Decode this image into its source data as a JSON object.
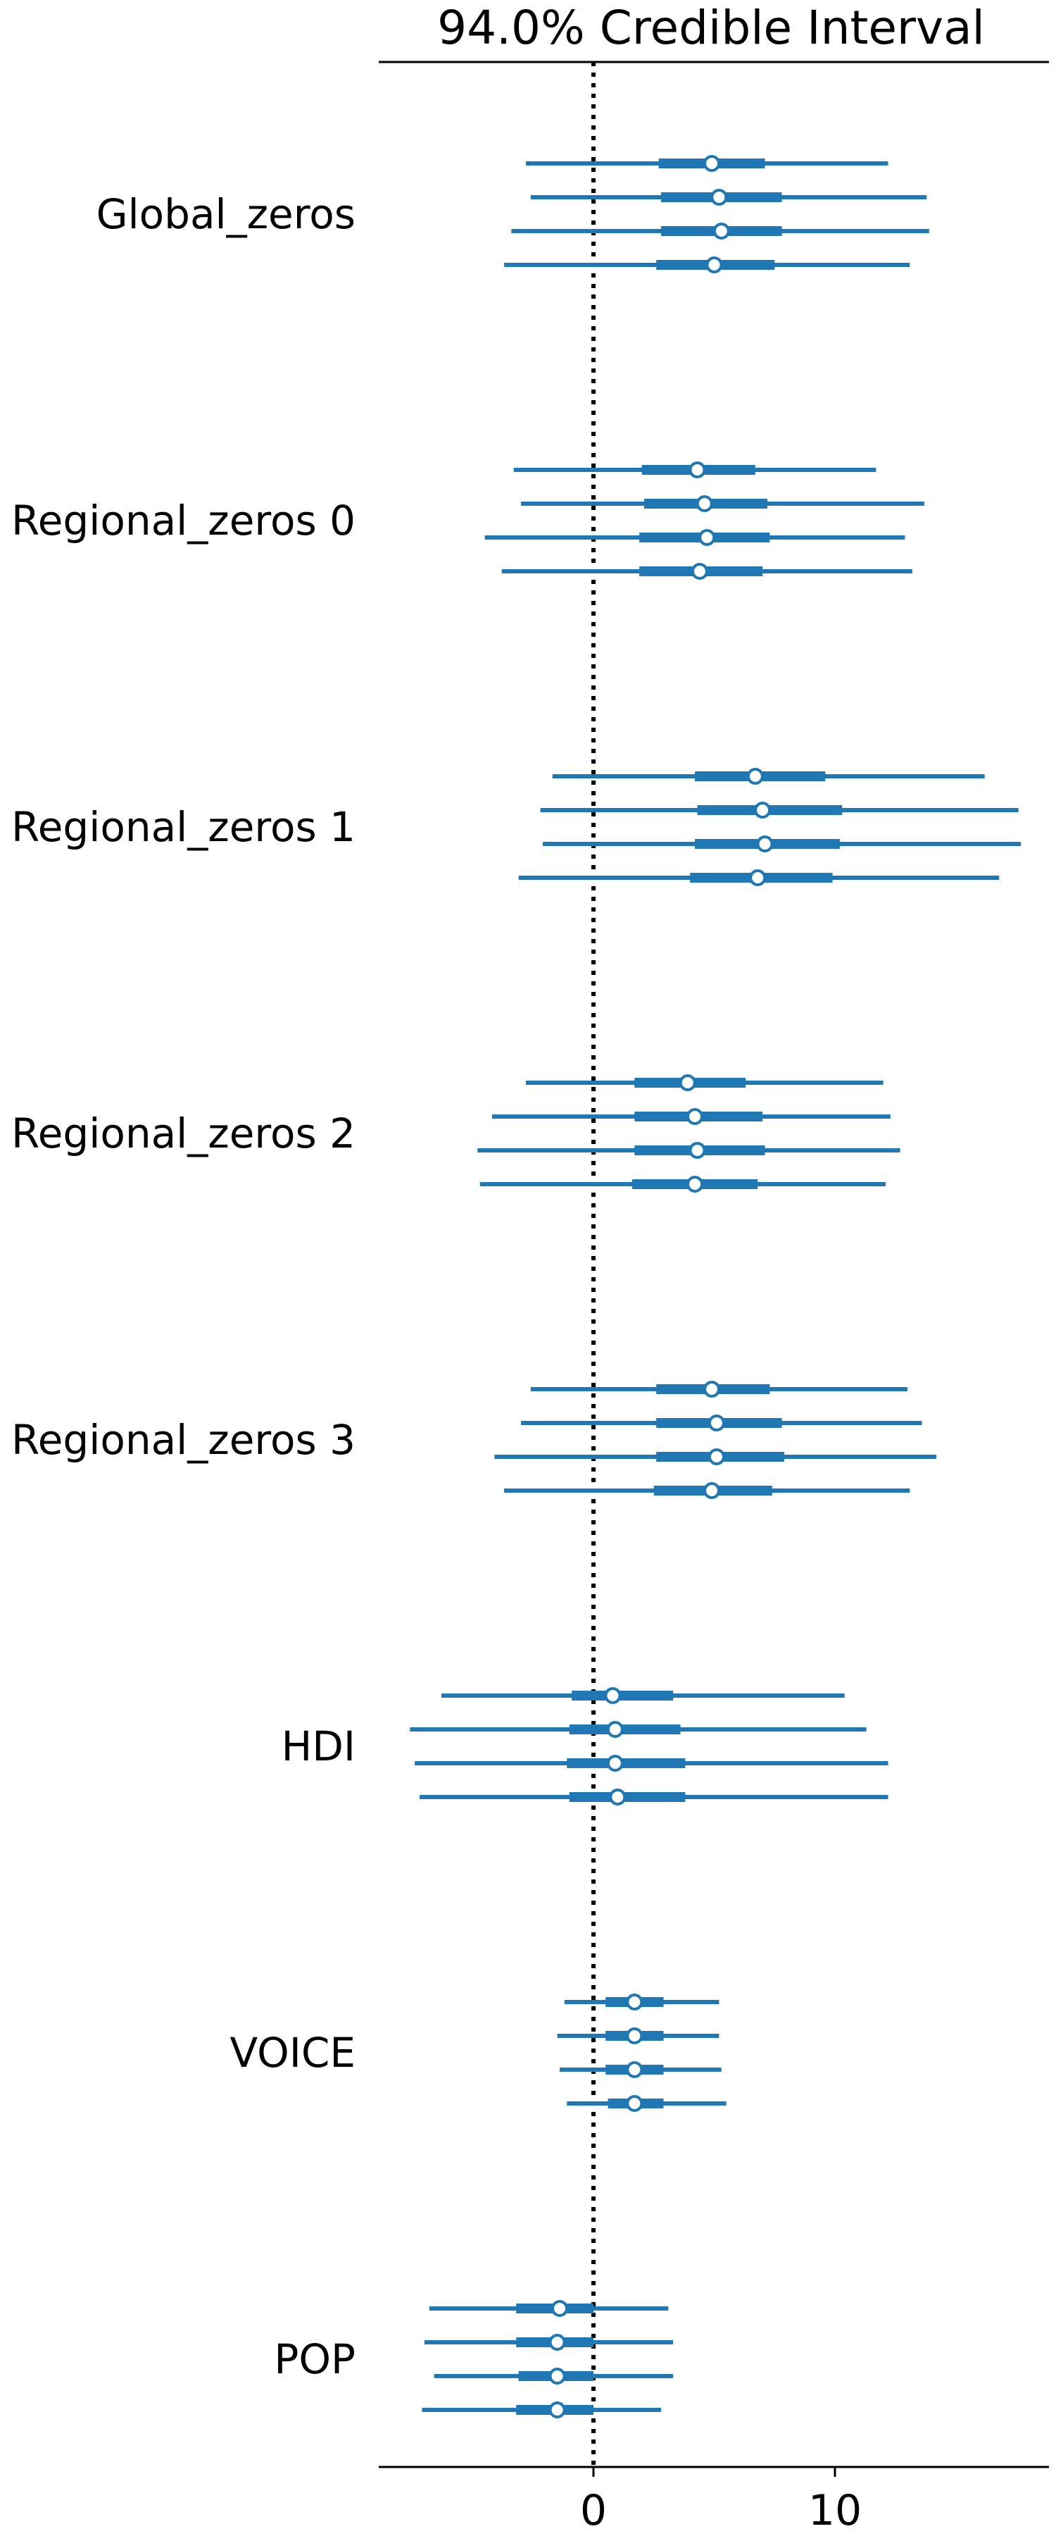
{
  "chart_data": {
    "type": "forest",
    "title": "94.0% Credible Interval",
    "xlabel": "",
    "ylabel": "",
    "xlim": [
      -9.0,
      18.5
    ],
    "x_ticks": [
      0,
      10
    ],
    "reference_line": 0,
    "grid": false,
    "legend": "none",
    "chains_per_variable": 4,
    "colors": {
      "interval": "#1f77b4",
      "median_fill": "#ffffff",
      "reference": "#000000"
    },
    "variables": [
      {
        "label": "Global_zeros",
        "chains": [
          {
            "low": -2.8,
            "q25": 2.7,
            "median": 4.9,
            "q75": 7.1,
            "high": 12.2
          },
          {
            "low": -2.6,
            "q25": 2.8,
            "median": 5.2,
            "q75": 7.8,
            "high": 13.8
          },
          {
            "low": -3.4,
            "q25": 2.8,
            "median": 5.3,
            "q75": 7.8,
            "high": 13.9
          },
          {
            "low": -3.7,
            "q25": 2.6,
            "median": 5.0,
            "q75": 7.5,
            "high": 13.1
          }
        ]
      },
      {
        "label": "Regional_zeros 0",
        "chains": [
          {
            "low": -3.3,
            "q25": 2.0,
            "median": 4.3,
            "q75": 6.7,
            "high": 11.7
          },
          {
            "low": -3.0,
            "q25": 2.1,
            "median": 4.6,
            "q75": 7.2,
            "high": 13.7
          },
          {
            "low": -4.5,
            "q25": 1.9,
            "median": 4.7,
            "q75": 7.3,
            "high": 12.9
          },
          {
            "low": -3.8,
            "q25": 1.9,
            "median": 4.4,
            "q75": 7.0,
            "high": 13.2
          }
        ]
      },
      {
        "label": "Regional_zeros 1",
        "chains": [
          {
            "low": -1.7,
            "q25": 4.2,
            "median": 6.7,
            "q75": 9.6,
            "high": 16.2
          },
          {
            "low": -2.2,
            "q25": 4.3,
            "median": 7.0,
            "q75": 10.3,
            "high": 17.6
          },
          {
            "low": -2.1,
            "q25": 4.2,
            "median": 7.1,
            "q75": 10.2,
            "high": 17.7
          },
          {
            "low": -3.1,
            "q25": 4.0,
            "median": 6.8,
            "q75": 9.9,
            "high": 16.8
          }
        ]
      },
      {
        "label": "Regional_zeros 2",
        "chains": [
          {
            "low": -2.8,
            "q25": 1.7,
            "median": 3.9,
            "q75": 6.3,
            "high": 12.0
          },
          {
            "low": -4.2,
            "q25": 1.7,
            "median": 4.2,
            "q75": 7.0,
            "high": 12.3
          },
          {
            "low": -4.8,
            "q25": 1.7,
            "median": 4.3,
            "q75": 7.1,
            "high": 12.7
          },
          {
            "low": -4.7,
            "q25": 1.6,
            "median": 4.2,
            "q75": 6.8,
            "high": 12.1
          }
        ]
      },
      {
        "label": "Regional_zeros 3",
        "chains": [
          {
            "low": -2.6,
            "q25": 2.6,
            "median": 4.9,
            "q75": 7.3,
            "high": 13.0
          },
          {
            "low": -3.0,
            "q25": 2.6,
            "median": 5.1,
            "q75": 7.8,
            "high": 13.6
          },
          {
            "low": -4.1,
            "q25": 2.6,
            "median": 5.1,
            "q75": 7.9,
            "high": 14.2
          },
          {
            "low": -3.7,
            "q25": 2.5,
            "median": 4.9,
            "q75": 7.4,
            "high": 13.1
          }
        ]
      },
      {
        "label": "HDI",
        "chains": [
          {
            "low": -6.3,
            "q25": -0.9,
            "median": 0.8,
            "q75": 3.3,
            "high": 10.4
          },
          {
            "low": -7.6,
            "q25": -1.0,
            "median": 0.9,
            "q75": 3.6,
            "high": 11.3
          },
          {
            "low": -7.4,
            "q25": -1.1,
            "median": 0.9,
            "q75": 3.8,
            "high": 12.2
          },
          {
            "low": -7.2,
            "q25": -1.0,
            "median": 1.0,
            "q75": 3.8,
            "high": 12.2
          }
        ]
      },
      {
        "label": "VOICE",
        "chains": [
          {
            "low": -1.2,
            "q25": 0.5,
            "median": 1.7,
            "q75": 2.9,
            "high": 5.2
          },
          {
            "low": -1.5,
            "q25": 0.5,
            "median": 1.7,
            "q75": 2.9,
            "high": 5.2
          },
          {
            "low": -1.4,
            "q25": 0.5,
            "median": 1.7,
            "q75": 2.9,
            "high": 5.3
          },
          {
            "low": -1.1,
            "q25": 0.6,
            "median": 1.7,
            "q75": 2.9,
            "high": 5.5
          }
        ]
      },
      {
        "label": "POP",
        "chains": [
          {
            "low": -6.8,
            "q25": -3.2,
            "median": -1.4,
            "q75": 0.0,
            "high": 3.1
          },
          {
            "low": -7.0,
            "q25": -3.2,
            "median": -1.5,
            "q75": 0.0,
            "high": 3.3
          },
          {
            "low": -6.6,
            "q25": -3.1,
            "median": -1.5,
            "q75": 0.0,
            "high": 3.3
          },
          {
            "low": -7.1,
            "q25": -3.2,
            "median": -1.5,
            "q75": 0.0,
            "high": 2.8
          }
        ]
      }
    ]
  }
}
